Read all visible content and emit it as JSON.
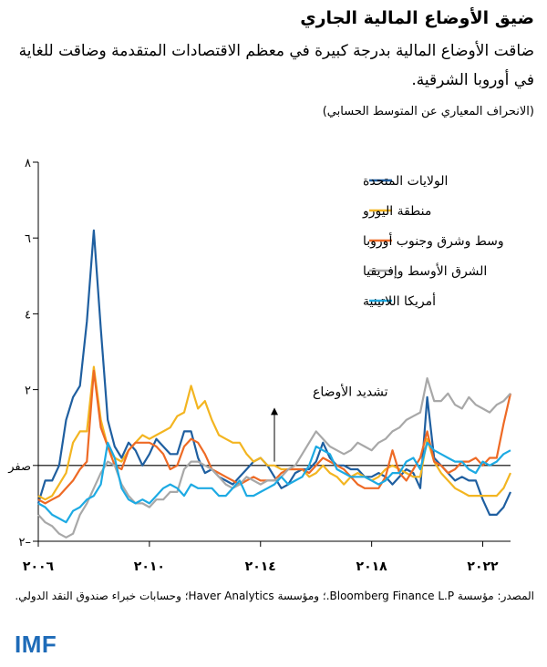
{
  "header": {
    "title": "ضيق الأوضاع المالية الجاري",
    "subtitle": "ضاقت الأوضاع المالية بدرجة كبيرة في معظم الاقتصادات المتقدمة وضاقت للغاية في أوروبا الشرقية.",
    "unit": "(الانحراف المعياري عن المتوسط الحسابي)"
  },
  "footer": {
    "source": "المصدر: مؤسسة Bloomberg Finance L.P.؛ ومؤسسة Haver Analytics؛ وحسابات خبراء صندوق النقد الدولي.",
    "logo": "IMF"
  },
  "chart_data": {
    "type": "line",
    "title": "ضيق الأوضاع المالية الجاري",
    "ylabel": "(الانحراف المعياري عن المتوسط الحسابي)",
    "ylim": [
      -2,
      8
    ],
    "xlim": [
      2006,
      2023
    ],
    "y_ticks": [
      {
        "value": -2,
        "label": "٢–"
      },
      {
        "value": 0,
        "label": "صفر"
      },
      {
        "value": 2,
        "label": "٢"
      },
      {
        "value": 4,
        "label": "٤"
      },
      {
        "value": 6,
        "label": "٦"
      },
      {
        "value": 8,
        "label": "٨"
      }
    ],
    "x_ticks": [
      {
        "value": 2006,
        "label": "٢٠٠٦"
      },
      {
        "value": 2010,
        "label": "٢٠١٠"
      },
      {
        "value": 2014,
        "label": "٢٠١٤"
      },
      {
        "value": 2018,
        "label": "٢٠١٨"
      },
      {
        "value": 2022,
        "label": "٢٠٢٢"
      }
    ],
    "zero_line": true,
    "annotation": {
      "text": "تشديد الأوضاع",
      "x": 2014.5,
      "y_from": 0.1,
      "y_to": 1.5
    },
    "legend_position": "top-center",
    "x": [
      2006.0,
      2006.25,
      2006.5,
      2006.75,
      2007.0,
      2007.25,
      2007.5,
      2007.75,
      2008.0,
      2008.25,
      2008.5,
      2008.75,
      2009.0,
      2009.25,
      2009.5,
      2009.75,
      2010.0,
      2010.25,
      2010.5,
      2010.75,
      2011.0,
      2011.25,
      2011.5,
      2011.75,
      2012.0,
      2012.25,
      2012.5,
      2012.75,
      2013.0,
      2013.25,
      2013.5,
      2013.75,
      2014.0,
      2014.25,
      2014.5,
      2014.75,
      2015.0,
      2015.25,
      2015.5,
      2015.75,
      2016.0,
      2016.25,
      2016.5,
      2016.75,
      2017.0,
      2017.25,
      2017.5,
      2017.75,
      2018.0,
      2018.25,
      2018.5,
      2018.75,
      2019.0,
      2019.25,
      2019.5,
      2019.75,
      2020.0,
      2020.25,
      2020.5,
      2020.75,
      2021.0,
      2021.25,
      2021.5,
      2021.75,
      2022.0,
      2022.25,
      2022.5,
      2022.75,
      2023.0
    ],
    "series": [
      {
        "name": "الولايات المتحدة",
        "color": "#1f5fa0",
        "values": [
          -1.0,
          -0.4,
          -0.4,
          0.0,
          1.2,
          1.8,
          2.1,
          3.8,
          6.2,
          3.6,
          1.2,
          0.5,
          0.2,
          0.6,
          0.4,
          0.0,
          0.3,
          0.7,
          0.5,
          0.3,
          0.3,
          0.9,
          0.9,
          0.2,
          -0.2,
          -0.1,
          -0.3,
          -0.4,
          -0.5,
          -0.3,
          -0.1,
          0.1,
          0.2,
          0.0,
          -0.3,
          -0.6,
          -0.5,
          -0.2,
          -0.1,
          -0.1,
          0.1,
          0.6,
          0.2,
          0.0,
          0.0,
          -0.1,
          -0.1,
          -0.3,
          -0.3,
          -0.2,
          -0.3,
          -0.5,
          -0.3,
          -0.1,
          -0.2,
          -0.6,
          1.8,
          0.2,
          0.0,
          -0.2,
          -0.4,
          -0.3,
          -0.4,
          -0.4,
          -0.9,
          -1.3,
          -1.3,
          -1.1,
          -0.7
        ]
      },
      {
        "name": "منطقة اليورو",
        "color": "#f3b521",
        "values": [
          -0.8,
          -0.9,
          -0.8,
          -0.5,
          -0.2,
          0.6,
          0.9,
          0.9,
          2.6,
          1.2,
          0.5,
          0.2,
          0.1,
          0.4,
          0.6,
          0.8,
          0.7,
          0.8,
          0.9,
          1.0,
          1.3,
          1.4,
          2.1,
          1.5,
          1.7,
          1.2,
          0.8,
          0.7,
          0.6,
          0.6,
          0.3,
          0.1,
          0.2,
          0.0,
          0.0,
          -0.1,
          -0.1,
          -0.1,
          -0.1,
          -0.3,
          -0.2,
          0.0,
          -0.2,
          -0.3,
          -0.5,
          -0.3,
          -0.2,
          -0.3,
          -0.4,
          -0.3,
          -0.1,
          0.0,
          -0.1,
          -0.2,
          -0.3,
          -0.3,
          0.7,
          0.1,
          -0.2,
          -0.4,
          -0.6,
          -0.7,
          -0.8,
          -0.8,
          -0.8,
          -0.8,
          -0.8,
          -0.6,
          -0.2
        ]
      },
      {
        "name": "وسط وشرق وجنوب أوروبا",
        "color": "#ee6a25",
        "values": [
          -0.9,
          -1.0,
          -0.9,
          -0.8,
          -0.6,
          -0.4,
          -0.1,
          0.1,
          2.5,
          1.0,
          0.5,
          0.0,
          -0.1,
          0.4,
          0.6,
          0.6,
          0.6,
          0.5,
          0.3,
          -0.1,
          0.0,
          0.5,
          0.7,
          0.6,
          0.3,
          -0.1,
          -0.2,
          -0.3,
          -0.4,
          -0.5,
          -0.4,
          -0.3,
          -0.4,
          -0.4,
          -0.4,
          -0.2,
          -0.1,
          -0.1,
          -0.1,
          -0.2,
          0.0,
          0.2,
          0.1,
          0.0,
          -0.1,
          -0.3,
          -0.5,
          -0.6,
          -0.6,
          -0.6,
          -0.3,
          0.4,
          -0.2,
          -0.4,
          -0.1,
          0.2,
          0.9,
          0.1,
          0.0,
          -0.2,
          -0.1,
          0.1,
          0.1,
          0.2,
          0.0,
          0.2,
          0.2,
          1.1,
          1.9
        ]
      },
      {
        "name": "الشرق الأوسط وإفريقيا",
        "color": "#a8a8a8",
        "values": [
          -1.3,
          -1.5,
          -1.6,
          -1.8,
          -1.9,
          -1.8,
          -1.3,
          -1.0,
          -0.6,
          -0.2,
          0.1,
          0.0,
          -0.5,
          -0.8,
          -1.0,
          -1.0,
          -1.1,
          -0.9,
          -0.9,
          -0.7,
          -0.7,
          -0.1,
          0.1,
          0.1,
          0.0,
          -0.1,
          -0.3,
          -0.5,
          -0.6,
          -0.5,
          -0.3,
          -0.4,
          -0.5,
          -0.4,
          -0.4,
          -0.3,
          -0.1,
          0.0,
          0.3,
          0.6,
          0.9,
          0.7,
          0.5,
          0.4,
          0.3,
          0.4,
          0.6,
          0.5,
          0.4,
          0.6,
          0.7,
          0.9,
          1.0,
          1.2,
          1.3,
          1.4,
          2.3,
          1.7,
          1.7,
          1.9,
          1.6,
          1.5,
          1.8,
          1.6,
          1.5,
          1.4,
          1.6,
          1.7,
          1.9
        ]
      },
      {
        "name": "أمريكا اللاتينية",
        "color": "#1daae3",
        "values": [
          -1.0,
          -1.1,
          -1.3,
          -1.4,
          -1.5,
          -1.2,
          -1.1,
          -0.9,
          -0.8,
          -0.5,
          0.6,
          0.2,
          -0.6,
          -0.9,
          -1.0,
          -0.9,
          -1.0,
          -0.8,
          -0.6,
          -0.5,
          -0.6,
          -0.8,
          -0.5,
          -0.6,
          -0.6,
          -0.6,
          -0.8,
          -0.8,
          -0.6,
          -0.4,
          -0.8,
          -0.8,
          -0.7,
          -0.6,
          -0.5,
          -0.3,
          -0.5,
          -0.4,
          -0.3,
          0.0,
          0.5,
          0.4,
          0.3,
          -0.1,
          -0.2,
          -0.3,
          -0.3,
          -0.3,
          -0.4,
          -0.5,
          -0.4,
          -0.2,
          -0.2,
          0.1,
          0.2,
          -0.1,
          0.6,
          0.4,
          0.3,
          0.2,
          0.1,
          0.1,
          -0.1,
          -0.2,
          0.1,
          0.0,
          0.1,
          0.3,
          0.4
        ]
      }
    ]
  }
}
